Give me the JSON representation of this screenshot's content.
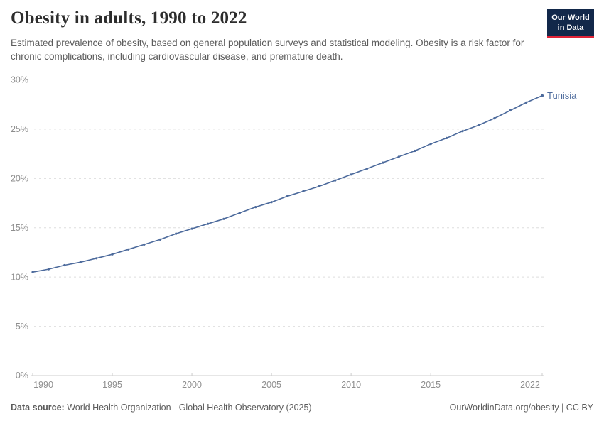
{
  "header": {
    "title": "Obesity in adults, 1990 to 2022",
    "subtitle": "Estimated prevalence of obesity, based on general population surveys and statistical modeling. Obesity is a risk factor for chronic complications, including cardiovascular disease, and premature death.",
    "logo": {
      "line1": "Our World",
      "line2": "in Data"
    }
  },
  "chart_data": {
    "type": "line",
    "title": "Obesity in adults, 1990 to 2022",
    "xlabel": "",
    "ylabel": "",
    "xlim": [
      1990,
      2022
    ],
    "ylim": [
      0,
      30
    ],
    "xticks": [
      1990,
      1995,
      2000,
      2005,
      2010,
      2015,
      2022
    ],
    "yticks": [
      0,
      5,
      10,
      15,
      20,
      25,
      30
    ],
    "ytick_suffix": "%",
    "grid": true,
    "legend_position": "line-end",
    "series": [
      {
        "name": "Tunisia",
        "end_label": "Tunisia",
        "x": [
          1990,
          1991,
          1992,
          1993,
          1994,
          1995,
          1996,
          1997,
          1998,
          1999,
          2000,
          2001,
          2002,
          2003,
          2004,
          2005,
          2006,
          2007,
          2008,
          2009,
          2010,
          2011,
          2012,
          2013,
          2014,
          2015,
          2016,
          2017,
          2018,
          2019,
          2020,
          2021,
          2022
        ],
        "values": [
          10.5,
          10.8,
          11.2,
          11.5,
          11.9,
          12.3,
          12.8,
          13.3,
          13.8,
          14.4,
          14.9,
          15.4,
          15.9,
          16.5,
          17.1,
          17.6,
          18.2,
          18.7,
          19.2,
          19.8,
          20.4,
          21.0,
          21.6,
          22.2,
          22.8,
          23.5,
          24.1,
          24.8,
          25.4,
          26.1,
          26.9,
          27.7,
          28.4
        ]
      }
    ]
  },
  "colors": {
    "line": "#4C6A9C",
    "logo_bg": "#12284a",
    "logo_accent": "#e02236",
    "grid": "#dedede",
    "axis": "#cccccc",
    "tick_label": "#8e8e8e",
    "text_muted": "#5b5b5b",
    "title": "#2d2d2d"
  },
  "footer": {
    "source_label": "Data source:",
    "source_text": "World Health Organization - Global Health Observatory (2025)",
    "right_text": "OurWorldinData.org/obesity | CC BY"
  }
}
